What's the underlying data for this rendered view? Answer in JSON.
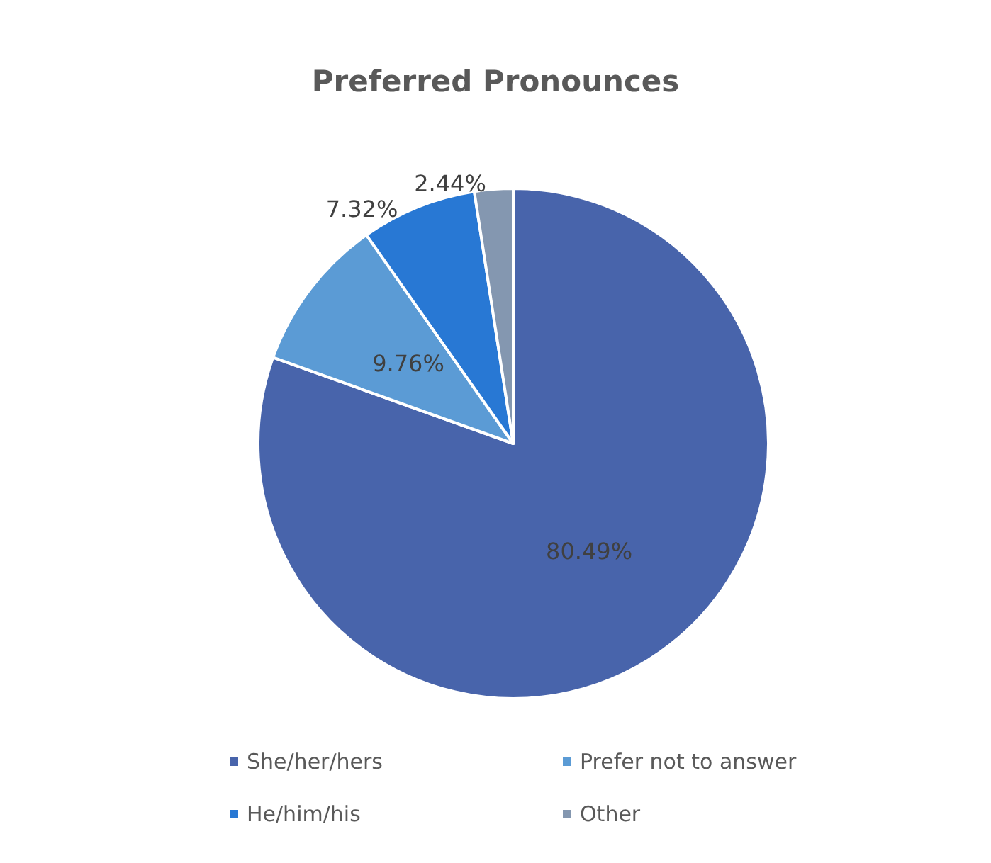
{
  "chart_data": {
    "type": "pie",
    "title": "Preferred Pronounces",
    "categories": [
      "She/her/hers",
      "Prefer not to answer",
      "He/him/his",
      "Other"
    ],
    "values": [
      80.49,
      9.76,
      7.32,
      2.44
    ],
    "colors": [
      "#4864ab",
      "#5b9bd5",
      "#2878d4",
      "#8497b0"
    ],
    "value_labels": [
      "80.49%",
      "9.76%",
      "7.32%",
      "2.44%"
    ],
    "legend": "bottom"
  }
}
